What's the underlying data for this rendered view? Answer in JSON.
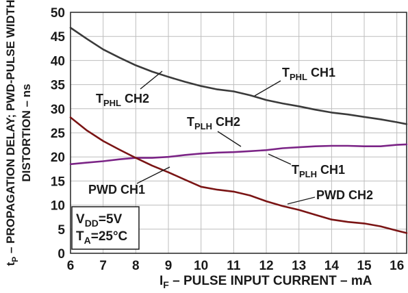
{
  "chart_data": {
    "type": "line",
    "xlabel": {
      "main": "I",
      "sub": "F",
      "rest": " – PULSE INPUT CURRENT – mA"
    },
    "ylabel": {
      "line1": {
        "main": "t",
        "sub": "P",
        "rest": " – PROPAGATION DELAY; PWD-PULSE WIDTH"
      },
      "line2": "DISTORTION – ns"
    },
    "xlim": [
      6,
      16.3
    ],
    "ylim": [
      0,
      50
    ],
    "x_ticks": [
      6,
      7,
      8,
      9,
      10,
      11,
      12,
      13,
      14,
      15,
      16
    ],
    "y_ticks": [
      0,
      5,
      10,
      15,
      20,
      25,
      30,
      35,
      40,
      45,
      50
    ],
    "grid": true,
    "series": [
      {
        "name": "TPHL",
        "color": "#3a3a3a",
        "x": [
          6,
          6.5,
          7,
          7.5,
          8,
          8.5,
          9,
          9.5,
          10,
          10.5,
          11,
          11.5,
          12,
          12.5,
          13,
          13.5,
          14,
          14.5,
          15,
          15.5,
          16,
          16.3
        ],
        "y": [
          46.8,
          44.5,
          42.3,
          40.6,
          39.0,
          37.7,
          36.6,
          35.6,
          34.7,
          34.0,
          33.6,
          32.8,
          31.8,
          31.1,
          30.5,
          29.8,
          29.2,
          28.8,
          28.3,
          27.8,
          27.2,
          26.8
        ]
      },
      {
        "name": "TPLH",
        "color": "#7b2486",
        "x": [
          6,
          6.5,
          7,
          7.5,
          8,
          8.5,
          9,
          9.5,
          10,
          10.5,
          11,
          11.5,
          12,
          12.5,
          13,
          13.5,
          14,
          14.5,
          15,
          15.5,
          16,
          16.3
        ],
        "y": [
          18.5,
          18.8,
          19.1,
          19.5,
          19.8,
          19.8,
          20.0,
          20.4,
          20.7,
          20.9,
          21.0,
          21.2,
          21.4,
          21.8,
          22.0,
          22.2,
          22.3,
          22.3,
          22.2,
          22.2,
          22.5,
          22.6
        ]
      },
      {
        "name": "PWD",
        "color": "#7a1414",
        "x": [
          6,
          6.5,
          7,
          7.5,
          8,
          8.5,
          9,
          9.5,
          10,
          10.5,
          11,
          11.5,
          12,
          12.5,
          13,
          13.5,
          14,
          14.5,
          15,
          15.5,
          16,
          16.3
        ],
        "y": [
          28.2,
          25.5,
          23.3,
          21.5,
          19.8,
          18.2,
          16.8,
          15.3,
          13.8,
          13.2,
          12.8,
          12.0,
          10.8,
          9.8,
          9.0,
          8.0,
          7.0,
          6.5,
          6.2,
          5.6,
          4.7,
          4.2
        ]
      }
    ],
    "annotations": [
      {
        "main": "T",
        "sub": "PHL",
        "rest": " CH1"
      },
      {
        "main": "T",
        "sub": "PHL",
        "rest": " CH2"
      },
      {
        "main": "T",
        "sub": "PLH",
        "rest": " CH2"
      },
      {
        "main": "T",
        "sub": "PLH",
        "rest": " CH1"
      },
      {
        "main": "PWD CH1",
        "sub": "",
        "rest": ""
      },
      {
        "main": "PWD CH2",
        "sub": "",
        "rest": ""
      }
    ],
    "conditions": [
      {
        "main": "V",
        "sub": "DD",
        "rest": "=5V"
      },
      {
        "main": "T",
        "sub": "A",
        "rest": "=25°C"
      }
    ]
  }
}
